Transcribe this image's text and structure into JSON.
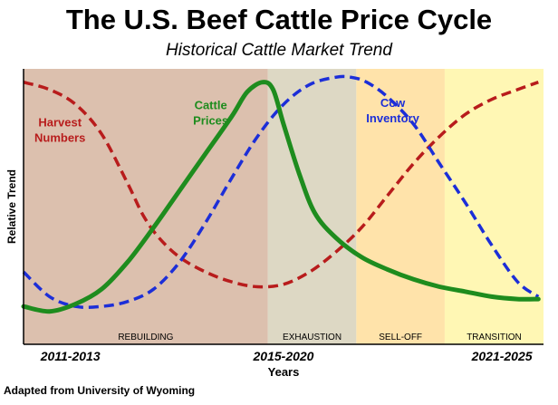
{
  "title": "The U.S. Beef Cattle Price Cycle",
  "subtitle": "Historical Cattle Market Trend",
  "credit": "Adapted from University of Wyoming",
  "chart_data": {
    "type": "line",
    "title": "The U.S. Beef Cattle Price Cycle",
    "subtitle": "Historical Cattle Market Trend",
    "xlabel": "Years",
    "ylabel": "Relative Trend",
    "xlim": [
      0,
      100
    ],
    "ylim": [
      0,
      100
    ],
    "grid": false,
    "phases": [
      {
        "name": "REBUILDING",
        "start": 0,
        "end": 47,
        "color": "#dcc0ae"
      },
      {
        "name": "EXHAUSTION",
        "start": 47,
        "end": 64,
        "color": "#ddd8c4"
      },
      {
        "name": "SELL-OFF",
        "start": 64,
        "end": 81,
        "color": "#ffe3aa"
      },
      {
        "name": "TRANSITION",
        "start": 81,
        "end": 100,
        "color": "#fff7b4"
      }
    ],
    "x_tick_labels": [
      {
        "x": 9,
        "label": "2011-2013"
      },
      {
        "x": 50,
        "label": "2015-2020"
      },
      {
        "x": 92,
        "label": "2021-2025"
      }
    ],
    "series": [
      {
        "name": "Cattle Prices",
        "color": "#1e8c1e",
        "dash": "solid",
        "label_lines": [
          "Cattle",
          "Prices"
        ],
        "label_x": 36,
        "label_y": 88,
        "x": [
          0,
          5,
          10,
          15,
          20,
          25,
          30,
          35,
          40,
          43,
          46,
          48,
          50,
          53,
          56,
          60,
          65,
          70,
          75,
          80,
          85,
          90,
          95,
          99
        ],
        "y": [
          8,
          6,
          9,
          15,
          26,
          40,
          55,
          70,
          85,
          95,
          99,
          96,
          82,
          62,
          46,
          36,
          28,
          23,
          19,
          16,
          14,
          12,
          11,
          11
        ]
      },
      {
        "name": "Harvest Numbers",
        "color": "#b81c1c",
        "dash": "dashed",
        "label_lines": [
          "Harvest",
          "Numbers"
        ],
        "label_x": 7,
        "label_y": 81,
        "x": [
          0,
          5,
          10,
          15,
          20,
          23,
          26,
          30,
          35,
          40,
          45,
          50,
          55,
          60,
          65,
          70,
          75,
          80,
          85,
          90,
          95,
          99
        ],
        "y": [
          99,
          96,
          90,
          78,
          58,
          45,
          36,
          28,
          22,
          18,
          16,
          17,
          22,
          30,
          40,
          53,
          66,
          77,
          86,
          92,
          96,
          99
        ]
      },
      {
        "name": "Cow Inventory",
        "color": "#1c2ed8",
        "dash": "dashed",
        "label_lines": [
          "Cow",
          "Inventory"
        ],
        "label_x": 71,
        "label_y": 89,
        "x": [
          0,
          5,
          10,
          15,
          20,
          25,
          30,
          35,
          40,
          45,
          50,
          55,
          60,
          63,
          66,
          70,
          75,
          80,
          85,
          90,
          95,
          99
        ],
        "y": [
          22,
          12,
          8,
          8,
          10,
          15,
          26,
          42,
          60,
          77,
          90,
          98,
          101,
          101,
          99,
          93,
          82,
          66,
          50,
          33,
          18,
          12
        ]
      }
    ]
  }
}
